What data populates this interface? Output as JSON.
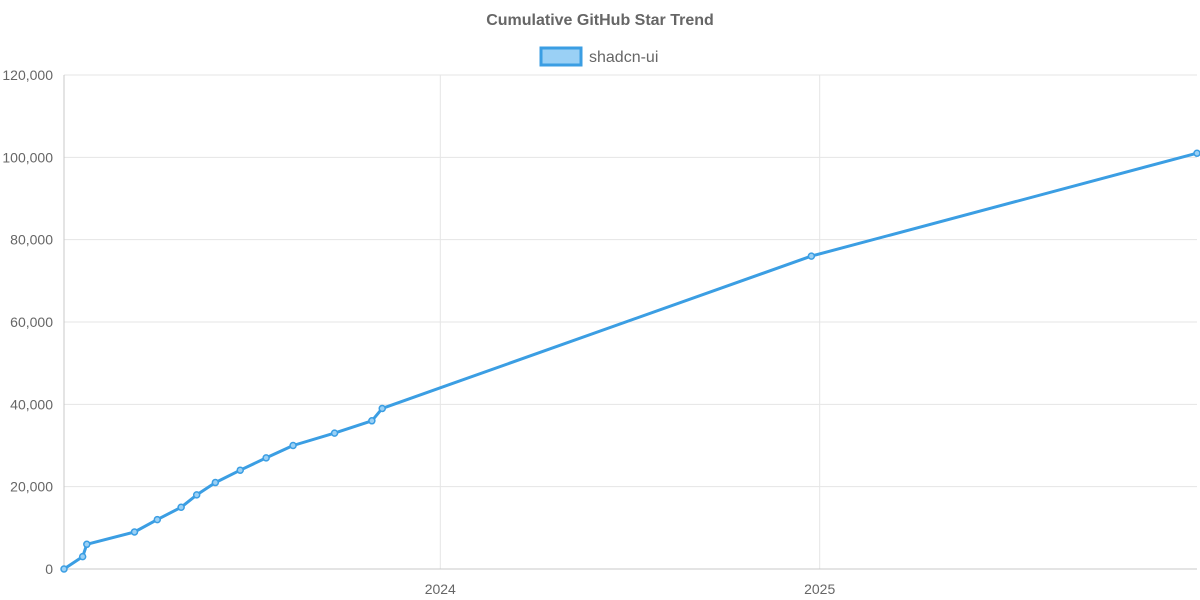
{
  "chart_data": {
    "type": "line",
    "title": "Cumulative GitHub Star Trend",
    "xlabel": "",
    "ylabel": "",
    "legend_position": "top-center",
    "grid": true,
    "series": [
      {
        "name": "shadcn-ui",
        "color": "#3b9ee3",
        "fill": "#9ad0f5",
        "points": [
          {
            "date": "2023-01-03",
            "value": 0
          },
          {
            "date": "2023-01-21",
            "value": 3000
          },
          {
            "date": "2023-01-25",
            "value": 6000
          },
          {
            "date": "2023-03-12",
            "value": 9000
          },
          {
            "date": "2023-04-03",
            "value": 12000
          },
          {
            "date": "2023-04-26",
            "value": 15000
          },
          {
            "date": "2023-05-11",
            "value": 18000
          },
          {
            "date": "2023-05-29",
            "value": 21000
          },
          {
            "date": "2023-06-22",
            "value": 24000
          },
          {
            "date": "2023-07-17",
            "value": 27000
          },
          {
            "date": "2023-08-12",
            "value": 30000
          },
          {
            "date": "2023-09-21",
            "value": 33000
          },
          {
            "date": "2023-10-27",
            "value": 36000
          },
          {
            "date": "2023-11-06",
            "value": 39000
          },
          {
            "date": "2024-12-24",
            "value": 76000
          },
          {
            "date": "2025-12-31",
            "value": 101000
          }
        ]
      }
    ],
    "y_axis": {
      "min": 0,
      "max": 120000,
      "ticks": [
        {
          "value": 0,
          "label": "0"
        },
        {
          "value": 20000,
          "label": "20,000"
        },
        {
          "value": 40000,
          "label": "40,000"
        },
        {
          "value": 60000,
          "label": "60,000"
        },
        {
          "value": 80000,
          "label": "80,000"
        },
        {
          "value": 100000,
          "label": "100,000"
        },
        {
          "value": 120000,
          "label": "120,000"
        }
      ]
    },
    "x_axis": {
      "min": "2023-01-03",
      "max": "2025-12-31",
      "ticks": [
        {
          "date": "2024-01-01",
          "label": "2024"
        },
        {
          "date": "2025-01-01",
          "label": "2025"
        }
      ]
    }
  }
}
